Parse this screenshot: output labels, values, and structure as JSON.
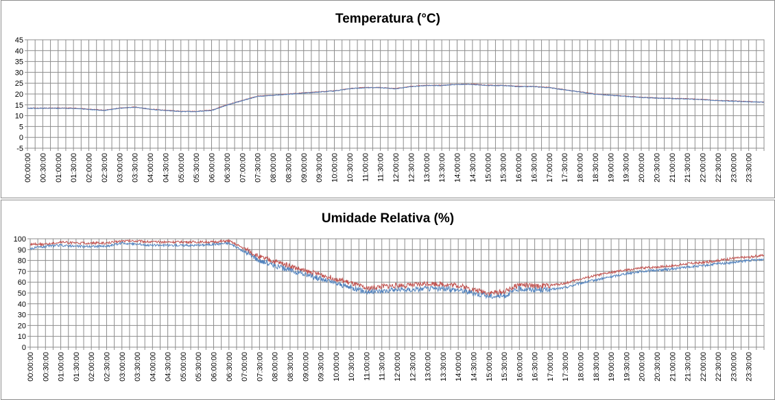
{
  "chart_data": [
    {
      "type": "line",
      "title": "Temperatura (°C)",
      "xlabel": "",
      "ylabel": "",
      "ylim": [
        -5,
        45
      ],
      "y_ticks": [
        "45",
        "40",
        "35",
        "30",
        "25",
        "20",
        "15",
        "10",
        "5",
        "0",
        "-5"
      ],
      "x_ticks": [
        "00:00:00",
        "00:30:00",
        "01:00:00",
        "01:30:00",
        "02:00:00",
        "02:30:00",
        "03:00:00",
        "03:30:00",
        "04:00:00",
        "04:30:00",
        "05:00:00",
        "05:30:00",
        "06:00:00",
        "06:30:00",
        "07:00:00",
        "07:30:00",
        "08:00:00",
        "08:30:00",
        "09:00:00",
        "09:30:00",
        "10:00:00",
        "10:30:00",
        "11:00:00",
        "11:30:00",
        "12:00:00",
        "12:30:00",
        "13:00:00",
        "13:30:00",
        "14:00:00",
        "14:30:00",
        "15:00:00",
        "15:30:00",
        "16:00:00",
        "16:30:00",
        "17:00:00",
        "17:30:00",
        "18:00:00",
        "18:30:00",
        "19:00:00",
        "19:30:00",
        "20:00:00",
        "20:30:00",
        "21:00:00",
        "21:30:00",
        "22:00:00",
        "22:30:00",
        "23:00:00",
        "23:30:00"
      ],
      "x_range_hours": [
        0,
        24
      ],
      "grid": true,
      "series": [
        {
          "color": "#c0504d",
          "x": [
            0,
            0.5,
            1,
            1.5,
            2,
            2.5,
            3,
            3.5,
            4,
            4.5,
            5,
            5.5,
            6,
            6.5,
            7,
            7.5,
            8,
            8.5,
            9,
            9.5,
            10,
            10.5,
            11,
            11.5,
            12,
            12.5,
            13,
            13.5,
            14,
            14.5,
            15,
            15.5,
            16,
            16.5,
            17,
            17.5,
            18,
            18.5,
            19,
            19.5,
            20,
            20.5,
            21,
            21.5,
            22,
            22.5,
            23,
            23.5,
            24
          ],
          "y": [
            13.5,
            13.5,
            13.5,
            13.5,
            13,
            12.5,
            13.5,
            14,
            13,
            12.5,
            12,
            12,
            12.5,
            15,
            17,
            19,
            19.5,
            20,
            20.5,
            21,
            21.5,
            22.5,
            23,
            23,
            22.5,
            23.5,
            24,
            24,
            24.5,
            24.5,
            24,
            24,
            23.5,
            23.5,
            23,
            22,
            21,
            20,
            19.5,
            19,
            18.5,
            18.2,
            18,
            17.8,
            17.5,
            17,
            16.8,
            16.5,
            16.3
          ]
        },
        {
          "color": "#4f81bd",
          "x": [
            0,
            0.5,
            1,
            1.5,
            2,
            2.5,
            3,
            3.5,
            4,
            4.5,
            5,
            5.5,
            6,
            6.5,
            7,
            7.5,
            8,
            8.5,
            9,
            9.5,
            10,
            10.5,
            11,
            11.5,
            12,
            12.5,
            13,
            13.5,
            14,
            14.5,
            15,
            15.5,
            16,
            16.5,
            17,
            17.5,
            18,
            18.5,
            19,
            19.5,
            20,
            20.5,
            21,
            21.5,
            22,
            22.5,
            23,
            23.5,
            24
          ],
          "y": [
            13.4,
            13.4,
            13.4,
            13.4,
            12.9,
            12.4,
            13.4,
            13.9,
            12.9,
            12.4,
            11.9,
            11.9,
            12.4,
            14.9,
            16.9,
            18.9,
            19.4,
            19.9,
            20.4,
            20.9,
            21.4,
            22.4,
            22.9,
            22.9,
            22.4,
            23.4,
            23.9,
            23.9,
            24.4,
            24.4,
            23.9,
            23.9,
            23.4,
            23.4,
            22.9,
            21.9,
            20.9,
            19.9,
            19.4,
            18.9,
            18.4,
            18.1,
            17.9,
            17.7,
            17.4,
            16.9,
            16.7,
            16.4,
            16.2
          ]
        }
      ]
    },
    {
      "type": "line",
      "title": "Umidade Relativa (%)",
      "xlabel": "",
      "ylabel": "",
      "ylim": [
        0,
        100
      ],
      "y_ticks": [
        "100",
        "90",
        "80",
        "70",
        "60",
        "50",
        "40",
        "30",
        "20",
        "10",
        "0"
      ],
      "x_ticks": [
        "00:00:00",
        "00:30:00",
        "01:00:00",
        "01:30:00",
        "02:00:00",
        "02:30:00",
        "03:00:00",
        "03:30:00",
        "04:00:00",
        "04:30:00",
        "05:00:00",
        "05:30:00",
        "06:00:00",
        "06:30:00",
        "07:00:00",
        "07:30:00",
        "08:00:00",
        "08:30:00",
        "09:00:00",
        "09:30:00",
        "10:00:00",
        "10:30:00",
        "11:00:00",
        "11:30:00",
        "12:00:00",
        "12:30:00",
        "13:00:00",
        "13:30:00",
        "14:00:00",
        "14:30:00",
        "15:00:00",
        "15:30:00",
        "16:00:00",
        "16:30:00",
        "17:00:00",
        "17:30:00",
        "18:00:00",
        "18:30:00",
        "19:00:00",
        "19:30:00",
        "20:00:00",
        "20:30:00",
        "21:00:00",
        "21:30:00",
        "22:00:00",
        "22:30:00",
        "23:00:00",
        "23:30:00"
      ],
      "x_range_hours": [
        0,
        24
      ],
      "grid": true,
      "series": [
        {
          "color": "#c0504d",
          "x": [
            0,
            0.5,
            1,
            1.5,
            2,
            2.5,
            3,
            3.5,
            4,
            4.5,
            5,
            5.5,
            6,
            6.5,
            7,
            7.5,
            8,
            8.5,
            9,
            9.5,
            10,
            10.5,
            11,
            11.5,
            12,
            12.5,
            13,
            13.5,
            14,
            14.5,
            15,
            15.5,
            16,
            16.5,
            17,
            17.5,
            18,
            18.5,
            19,
            19.5,
            20,
            20.5,
            21,
            21.5,
            22,
            22.5,
            23,
            23.5,
            24
          ],
          "y": [
            95,
            95,
            97,
            96,
            96,
            96,
            98,
            98,
            97,
            97,
            97,
            97,
            97,
            98,
            91,
            83,
            79,
            75,
            70,
            67,
            63,
            59,
            54,
            56,
            57,
            57,
            59,
            58,
            57,
            53,
            50,
            51,
            58,
            56,
            57,
            59,
            63,
            66,
            69,
            71,
            73,
            74,
            75,
            77,
            78,
            80,
            82,
            83,
            85
          ]
        },
        {
          "color": "#4f81bd",
          "x": [
            0,
            0.5,
            1,
            1.5,
            2,
            2.5,
            3,
            3.5,
            4,
            4.5,
            5,
            5.5,
            6,
            6.5,
            7,
            7.5,
            8,
            8.5,
            9,
            9.5,
            10,
            10.5,
            11,
            11.5,
            12,
            12.5,
            13,
            13.5,
            14,
            14.5,
            15,
            15.5,
            16,
            16.5,
            17,
            17.5,
            18,
            18.5,
            19,
            19.5,
            20,
            20.5,
            21,
            21.5,
            22,
            22.5,
            23,
            23.5,
            24
          ],
          "y": [
            91,
            93,
            94,
            93,
            93,
            93,
            96,
            95,
            94,
            94,
            94,
            94,
            95,
            96,
            88,
            80,
            75,
            71,
            67,
            63,
            59,
            55,
            51,
            52,
            53,
            53,
            54,
            54,
            53,
            50,
            47,
            47,
            54,
            53,
            53,
            55,
            59,
            62,
            65,
            68,
            70,
            71,
            72,
            74,
            75,
            77,
            78,
            80,
            81
          ]
        }
      ]
    }
  ]
}
